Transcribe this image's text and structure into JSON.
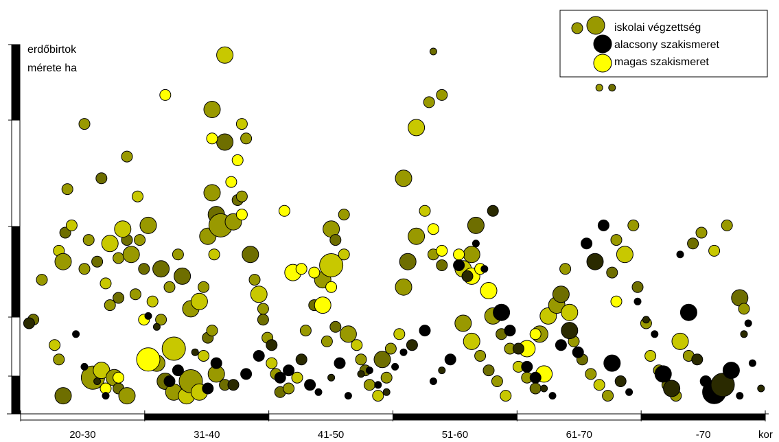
{
  "chart_data": {
    "type": "scatter",
    "title": "",
    "xlabel": "kor",
    "ylabel": "erdőbirtok mérete ha",
    "ylabel_lines": [
      "erdőbirtok",
      "mérete ha"
    ],
    "x_categories": [
      "20-30",
      "31-40",
      "41-50",
      "51-60",
      "61-70",
      "-70"
    ],
    "x_unit": "kor",
    "y_scale_note": "no numeric y tick labels shown",
    "grid": false,
    "legend_position": "top-right",
    "legend": [
      {
        "label": "iskolai végzettség",
        "color": "#999900",
        "series": "school"
      },
      {
        "label": "alacsony szakismeret",
        "color": "#000000",
        "series": "low"
      },
      {
        "label": "magas szakismeret",
        "color": "#ffff00",
        "series": "high"
      }
    ],
    "colors": {
      "school_dark": "#6e6e00",
      "school_mid": "#999900",
      "school_light": "#c8c800",
      "low": "#000000",
      "high": "#ffff00"
    },
    "series": [
      {
        "name": "iskolai végzettség",
        "note": "points in axis units: x = age position (0 = left end of 20-30, 6 = right end of -70), y = relative height (0 = baseline, 100 = top of axis); s = bubble size class",
        "points": [
          [
            0.3,
            26,
            2
          ],
          [
            0.5,
            37,
            2
          ],
          [
            0.9,
            45,
            2
          ],
          [
            1.0,
            42,
            3
          ],
          [
            1.05,
            50,
            2
          ],
          [
            1.1,
            62,
            2
          ],
          [
            0.8,
            19,
            2
          ],
          [
            0.9,
            15,
            2
          ],
          [
            1.0,
            5,
            3
          ],
          [
            1.7,
            10,
            4
          ],
          [
            1.9,
            12,
            3
          ],
          [
            2.2,
            10,
            3
          ],
          [
            2.3,
            7,
            2
          ],
          [
            2.5,
            5,
            3
          ],
          [
            2.1,
            47,
            3
          ],
          [
            2.3,
            43,
            2
          ],
          [
            2.5,
            48,
            2
          ],
          [
            2.8,
            48,
            2
          ],
          [
            2.4,
            51,
            3
          ],
          [
            2.6,
            44,
            3
          ],
          [
            2.9,
            40,
            2
          ],
          [
            3.0,
            52,
            3
          ],
          [
            2.75,
            60,
            2
          ],
          [
            2.5,
            71,
            2
          ],
          [
            1.9,
            65,
            2
          ],
          [
            1.5,
            80,
            2
          ],
          [
            1.2,
            52,
            2
          ],
          [
            1.6,
            48,
            2
          ],
          [
            1.8,
            42,
            2
          ],
          [
            1.5,
            40,
            2
          ],
          [
            2.0,
            36,
            2
          ],
          [
            2.1,
            30,
            2
          ],
          [
            2.3,
            32,
            2
          ],
          [
            2.7,
            33,
            2
          ],
          [
            3.1,
            31,
            2
          ],
          [
            3.3,
            26,
            2
          ],
          [
            3.3,
            40,
            3
          ],
          [
            3.5,
            35,
            2
          ],
          [
            3.6,
            18,
            4
          ],
          [
            3.2,
            14,
            3
          ],
          [
            3.4,
            9,
            3
          ],
          [
            3.6,
            6,
            3
          ],
          [
            3.9,
            5,
            3
          ],
          [
            3.7,
            44,
            2
          ],
          [
            3.8,
            38,
            3
          ],
          [
            4.0,
            29,
            3
          ],
          [
            4.2,
            31,
            3
          ],
          [
            4.3,
            35,
            2
          ],
          [
            4.4,
            21,
            2
          ],
          [
            4.5,
            23,
            2
          ],
          [
            4.3,
            16,
            2
          ],
          [
            4.6,
            11,
            3
          ],
          [
            4.8,
            8,
            2
          ],
          [
            4.0,
            9,
            4
          ],
          [
            4.2,
            6,
            3
          ],
          [
            4.4,
            49,
            3
          ],
          [
            4.6,
            55,
            3
          ],
          [
            4.7,
            52,
            4
          ],
          [
            4.55,
            44,
            2
          ],
          [
            4.5,
            61,
            3
          ],
          [
            4.8,
            75,
            3
          ],
          [
            4.5,
            84,
            3
          ],
          [
            4.8,
            99,
            3
          ],
          [
            5.0,
            53,
            3
          ],
          [
            5.1,
            59,
            2
          ],
          [
            5.2,
            60,
            2
          ],
          [
            5.2,
            80,
            2
          ],
          [
            5.3,
            76,
            2
          ],
          [
            5.4,
            44,
            3
          ],
          [
            5.5,
            37,
            2
          ],
          [
            5.6,
            33,
            3
          ],
          [
            5.7,
            29,
            2
          ],
          [
            5.7,
            26,
            2
          ],
          [
            5.8,
            21,
            2
          ],
          [
            5.9,
            14,
            2
          ],
          [
            6.0,
            11,
            2
          ],
          [
            6.1,
            6,
            2
          ],
          [
            6.3,
            7,
            2
          ],
          [
            6.5,
            10,
            2
          ],
          [
            6.7,
            23,
            2
          ],
          [
            6.9,
            30,
            2
          ],
          [
            7.1,
            37,
            3
          ],
          [
            7.3,
            41,
            4
          ],
          [
            7.3,
            51,
            3
          ],
          [
            7.4,
            48,
            2
          ],
          [
            7.6,
            55,
            2
          ],
          [
            7.6,
            44,
            2
          ],
          [
            7.2,
            20,
            2
          ],
          [
            7.4,
            24,
            2
          ],
          [
            7.7,
            22,
            3
          ],
          [
            7.9,
            19,
            2
          ],
          [
            8.0,
            15,
            2
          ],
          [
            8.1,
            12,
            2
          ],
          [
            8.2,
            8,
            2
          ],
          [
            8.4,
            5,
            2
          ],
          [
            8.6,
            10,
            2
          ],
          [
            8.5,
            15,
            3
          ],
          [
            8.7,
            18,
            2
          ],
          [
            8.9,
            22,
            2
          ],
          [
            9.0,
            35,
            3
          ],
          [
            9.1,
            42,
            3
          ],
          [
            9.3,
            49,
            3
          ],
          [
            9.5,
            56,
            2
          ],
          [
            9.7,
            44,
            2
          ],
          [
            9.9,
            41,
            2
          ],
          [
            9.0,
            65,
            3
          ],
          [
            9.3,
            79,
            3
          ],
          [
            9.6,
            86,
            2
          ],
          [
            9.7,
            100,
            1
          ],
          [
            9.9,
            88,
            2
          ],
          [
            10.4,
            40,
            3
          ],
          [
            10.6,
            44,
            3
          ],
          [
            10.7,
            52,
            3
          ],
          [
            10.4,
            25,
            3
          ],
          [
            10.6,
            20,
            3
          ],
          [
            10.8,
            16,
            2
          ],
          [
            11.0,
            12,
            2
          ],
          [
            11.2,
            9,
            2
          ],
          [
            11.4,
            5,
            2
          ],
          [
            11.1,
            27,
            3
          ],
          [
            11.3,
            22,
            2
          ],
          [
            11.5,
            18,
            2
          ],
          [
            11.7,
            13,
            2
          ],
          [
            11.9,
            10,
            2
          ],
          [
            12.1,
            7,
            2
          ],
          [
            12.2,
            22,
            3
          ],
          [
            12.4,
            27,
            3
          ],
          [
            12.6,
            30,
            3
          ],
          [
            12.7,
            33,
            3
          ],
          [
            12.8,
            40,
            2
          ],
          [
            12.9,
            28,
            3
          ],
          [
            13.0,
            20,
            2
          ],
          [
            13.2,
            15,
            2
          ],
          [
            13.4,
            11,
            2
          ],
          [
            13.6,
            8,
            2
          ],
          [
            13.8,
            5,
            2
          ],
          [
            13.9,
            39,
            2
          ],
          [
            14.0,
            48,
            2
          ],
          [
            14.2,
            44,
            3
          ],
          [
            14.4,
            52,
            2
          ],
          [
            14.5,
            35,
            2
          ],
          [
            14.7,
            25,
            2
          ],
          [
            14.8,
            16,
            2
          ],
          [
            15.0,
            12,
            2
          ],
          [
            15.2,
            8,
            2
          ],
          [
            15.4,
            5,
            2
          ],
          [
            15.5,
            20,
            3
          ],
          [
            15.7,
            16,
            2
          ],
          [
            15.8,
            47,
            2
          ],
          [
            16.0,
            50,
            2
          ],
          [
            16.3,
            45,
            2
          ],
          [
            16.6,
            52,
            2
          ],
          [
            16.9,
            32,
            3
          ],
          [
            17.0,
            29,
            2
          ],
          [
            13.2,
            94,
            1
          ],
          [
            13.6,
            90,
            1
          ],
          [
            13.9,
            90,
            1
          ]
        ]
      },
      {
        "name": "alacsony szakismeret",
        "points": [
          [
            0.2,
            25,
            2
          ],
          [
            1.3,
            22,
            1
          ],
          [
            1.5,
            13,
            1
          ],
          [
            1.8,
            9,
            1
          ],
          [
            2.0,
            5,
            1
          ],
          [
            3.0,
            27,
            1
          ],
          [
            3.2,
            24,
            1
          ],
          [
            3.5,
            9,
            2
          ],
          [
            3.7,
            12,
            2
          ],
          [
            4.1,
            17,
            1
          ],
          [
            4.4,
            7,
            2
          ],
          [
            4.6,
            14,
            2
          ],
          [
            5.0,
            8,
            2
          ],
          [
            5.3,
            11,
            2
          ],
          [
            5.6,
            16,
            2
          ],
          [
            5.9,
            19,
            2
          ],
          [
            6.1,
            10,
            2
          ],
          [
            6.3,
            12,
            2
          ],
          [
            6.6,
            15,
            2
          ],
          [
            6.8,
            8,
            2
          ],
          [
            7.0,
            6,
            1
          ],
          [
            7.3,
            10,
            1
          ],
          [
            7.5,
            14,
            2
          ],
          [
            7.7,
            5,
            1
          ],
          [
            8.0,
            11,
            1
          ],
          [
            8.2,
            12,
            1
          ],
          [
            8.4,
            8,
            1
          ],
          [
            8.6,
            6,
            1
          ],
          [
            8.8,
            13,
            1
          ],
          [
            9.0,
            17,
            1
          ],
          [
            9.2,
            19,
            2
          ],
          [
            9.5,
            23,
            2
          ],
          [
            9.7,
            9,
            1
          ],
          [
            9.9,
            12,
            1
          ],
          [
            10.1,
            15,
            2
          ],
          [
            10.3,
            41,
            2
          ],
          [
            10.5,
            38,
            2
          ],
          [
            10.7,
            47,
            1
          ],
          [
            10.9,
            40,
            1
          ],
          [
            11.1,
            56,
            2
          ],
          [
            11.3,
            28,
            3
          ],
          [
            11.5,
            23,
            2
          ],
          [
            11.7,
            18,
            2
          ],
          [
            11.9,
            13,
            2
          ],
          [
            12.1,
            10,
            2
          ],
          [
            12.3,
            7,
            1
          ],
          [
            12.5,
            5,
            1
          ],
          [
            12.7,
            19,
            2
          ],
          [
            12.9,
            23,
            3
          ],
          [
            13.1,
            17,
            2
          ],
          [
            13.3,
            47,
            2
          ],
          [
            13.5,
            42,
            3
          ],
          [
            13.7,
            52,
            2
          ],
          [
            13.9,
            14,
            3
          ],
          [
            14.1,
            9,
            2
          ],
          [
            14.3,
            6,
            1
          ],
          [
            14.5,
            31,
            1
          ],
          [
            14.7,
            26,
            1
          ],
          [
            14.9,
            22,
            1
          ],
          [
            15.1,
            11,
            3
          ],
          [
            15.3,
            7,
            3
          ],
          [
            15.5,
            44,
            1
          ],
          [
            15.7,
            28,
            3
          ],
          [
            15.9,
            15,
            2
          ],
          [
            16.1,
            9,
            2
          ],
          [
            16.3,
            6,
            4
          ],
          [
            16.5,
            8,
            4
          ],
          [
            16.7,
            12,
            3
          ],
          [
            16.9,
            5,
            1
          ],
          [
            17.0,
            22,
            1
          ],
          [
            17.1,
            25,
            1
          ],
          [
            17.2,
            14,
            1
          ],
          [
            17.4,
            7,
            1
          ]
        ]
      },
      {
        "name": "magas szakismeret",
        "points": [
          [
            2.0,
            7,
            2
          ],
          [
            2.3,
            10,
            2
          ],
          [
            2.9,
            26,
            2
          ],
          [
            3.0,
            15,
            4
          ],
          [
            3.4,
            88,
            2
          ],
          [
            4.5,
            76,
            2
          ],
          [
            4.95,
            64,
            2
          ],
          [
            5.1,
            70,
            2
          ],
          [
            5.2,
            55,
            2
          ],
          [
            6.2,
            56,
            2
          ],
          [
            6.4,
            39,
            3
          ],
          [
            6.6,
            40,
            2
          ],
          [
            6.9,
            39,
            2
          ],
          [
            7.1,
            30,
            3
          ],
          [
            7.3,
            35,
            2
          ],
          [
            9.7,
            51,
            2
          ],
          [
            9.9,
            45,
            2
          ],
          [
            10.3,
            44,
            2
          ],
          [
            10.6,
            38,
            3
          ],
          [
            10.8,
            40,
            2
          ],
          [
            11.0,
            34,
            3
          ],
          [
            11.9,
            18,
            3
          ],
          [
            12.1,
            22,
            2
          ],
          [
            12.3,
            11,
            3
          ],
          [
            14.0,
            31,
            2
          ]
        ]
      }
    ]
  }
}
